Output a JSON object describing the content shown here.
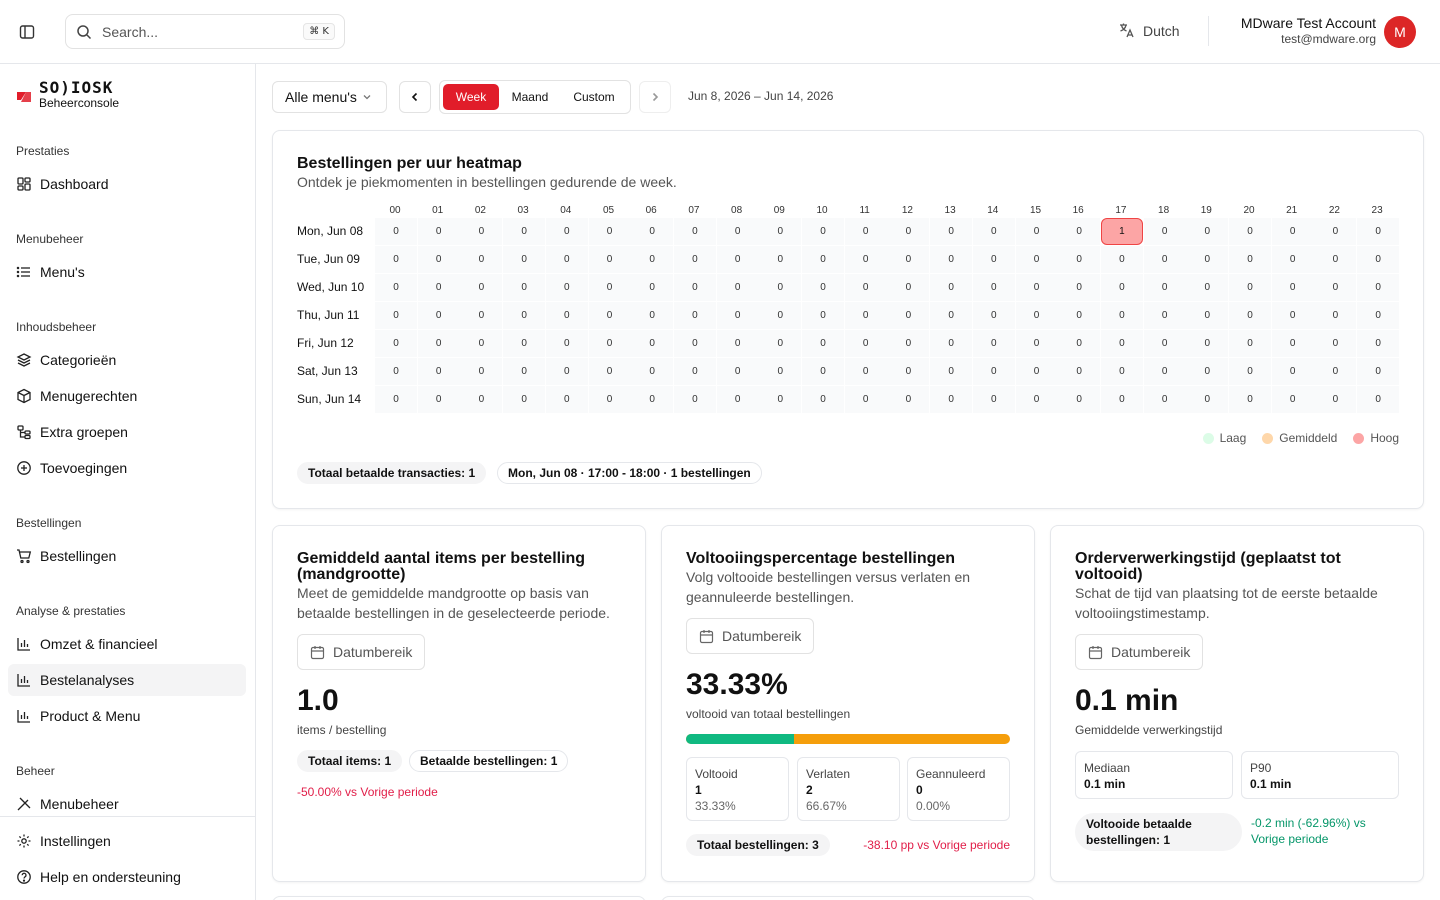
{
  "topbar": {
    "search_placeholder": "Search...",
    "search_shortcut": "⌘ K",
    "language": "Dutch",
    "account_name": "MDware Test Account",
    "account_email": "test@mdware.org",
    "avatar_initial": "M"
  },
  "brand": {
    "logo": "SO)IOSK",
    "subtitle": "Beheerconsole"
  },
  "sidebar": {
    "sections": {
      "prestaties": "Prestaties",
      "menubeheer": "Menubeheer",
      "inhoudsbeheer": "Inhoudsbeheer",
      "bestellingen": "Bestellingen",
      "analyse": "Analyse & prestaties",
      "beheer": "Beheer"
    },
    "items": {
      "dashboard": "Dashboard",
      "menus": "Menu's",
      "categorieen": "Categorieën",
      "menugerechten": "Menugerechten",
      "extra_groepen": "Extra groepen",
      "toevoegingen": "Toevoegingen",
      "bestellingen": "Bestellingen",
      "omzet": "Omzet & financieel",
      "bestelanalyses": "Bestelanalyses",
      "product_menu": "Product & Menu",
      "menubeheer": "Menubeheer",
      "instellingen": "Instellingen",
      "help": "Help en ondersteuning"
    }
  },
  "toolbar": {
    "menu_select": "Alle menu's",
    "segments": [
      "Week",
      "Maand",
      "Custom"
    ],
    "active_segment": "Week",
    "date_range": "Jun 8, 2026 – Jun 14, 2026"
  },
  "heatmap": {
    "title": "Bestellingen per uur heatmap",
    "description": "Ontdek je piekmomenten in bestellingen gedurende de week.",
    "hours": [
      "00",
      "01",
      "02",
      "03",
      "04",
      "05",
      "06",
      "07",
      "08",
      "09",
      "10",
      "11",
      "12",
      "13",
      "14",
      "15",
      "16",
      "17",
      "18",
      "19",
      "20",
      "21",
      "22",
      "23"
    ],
    "days": [
      "Mon, Jun 08",
      "Tue, Jun 09",
      "Wed, Jun 10",
      "Thu, Jun 11",
      "Fri, Jun 12",
      "Sat, Jun 13",
      "Sun, Jun 14"
    ],
    "values": [
      [
        0,
        0,
        0,
        0,
        0,
        0,
        0,
        0,
        0,
        0,
        0,
        0,
        0,
        0,
        0,
        0,
        0,
        1,
        0,
        0,
        0,
        0,
        0,
        0
      ],
      [
        0,
        0,
        0,
        0,
        0,
        0,
        0,
        0,
        0,
        0,
        0,
        0,
        0,
        0,
        0,
        0,
        0,
        0,
        0,
        0,
        0,
        0,
        0,
        0
      ],
      [
        0,
        0,
        0,
        0,
        0,
        0,
        0,
        0,
        0,
        0,
        0,
        0,
        0,
        0,
        0,
        0,
        0,
        0,
        0,
        0,
        0,
        0,
        0,
        0
      ],
      [
        0,
        0,
        0,
        0,
        0,
        0,
        0,
        0,
        0,
        0,
        0,
        0,
        0,
        0,
        0,
        0,
        0,
        0,
        0,
        0,
        0,
        0,
        0,
        0
      ],
      [
        0,
        0,
        0,
        0,
        0,
        0,
        0,
        0,
        0,
        0,
        0,
        0,
        0,
        0,
        0,
        0,
        0,
        0,
        0,
        0,
        0,
        0,
        0,
        0
      ],
      [
        0,
        0,
        0,
        0,
        0,
        0,
        0,
        0,
        0,
        0,
        0,
        0,
        0,
        0,
        0,
        0,
        0,
        0,
        0,
        0,
        0,
        0,
        0,
        0
      ],
      [
        0,
        0,
        0,
        0,
        0,
        0,
        0,
        0,
        0,
        0,
        0,
        0,
        0,
        0,
        0,
        0,
        0,
        0,
        0,
        0,
        0,
        0,
        0,
        0
      ]
    ],
    "legend": {
      "low": "Laag",
      "mid": "Gemiddeld",
      "high": "Hoog"
    },
    "legend_colors": {
      "low": "#dcfce7",
      "mid": "#fed7aa",
      "high": "#fca5a5"
    },
    "total_pill": "Totaal betaalde transacties: 1",
    "peak_pill": "Mon, Jun 08 · 17:00 - 18:00 · 1 bestellingen"
  },
  "basket": {
    "title": "Gemiddeld aantal items per bestelling (mandgrootte)",
    "description": "Meet de gemiddelde mandgrootte op basis van betaalde bestellingen in de geselecteerde periode.",
    "date_button": "Datumbereik",
    "value": "1.0",
    "unit": "items / bestelling",
    "pill_items": "Totaal items: 1",
    "pill_orders": "Betaalde bestellingen: 1",
    "change": "-50.00% vs Vorige periode"
  },
  "completion": {
    "title": "Voltooiingspercentage bestellingen",
    "description": "Volg voltooide bestellingen versus verlaten en geannuleerde bestellingen.",
    "date_button": "Datumbereik",
    "value": "33.33%",
    "unit": "voltooid van totaal bestellingen",
    "completed_fraction": 0.3333,
    "stats": [
      {
        "label": "Voltooid",
        "value": "1",
        "pct": "33.33%"
      },
      {
        "label": "Verlaten",
        "value": "2",
        "pct": "66.67%"
      },
      {
        "label": "Geannuleerd",
        "value": "0",
        "pct": "0.00%"
      }
    ],
    "total_pill": "Totaal bestellingen: 3",
    "change": "-38.10 pp vs Vorige periode",
    "colors": {
      "completed": "#10b981",
      "abandoned": "#f59e0b"
    }
  },
  "processing": {
    "title": "Orderverwerkingstijd (geplaatst tot voltooid)",
    "description": "Schat de tijd van plaatsing tot de eerste betaalde voltooiingstimestamp.",
    "date_button": "Datumbereik",
    "value": "0.1 min",
    "unit": "Gemiddelde verwerkingstijd",
    "stats": [
      {
        "label": "Mediaan",
        "value": "0.1 min"
      },
      {
        "label": "P90",
        "value": "0.1 min"
      }
    ],
    "pill": "Voltooide betaalde bestellingen: 1",
    "change": "-0.2 min (-62.96%) vs Vorige periode"
  }
}
